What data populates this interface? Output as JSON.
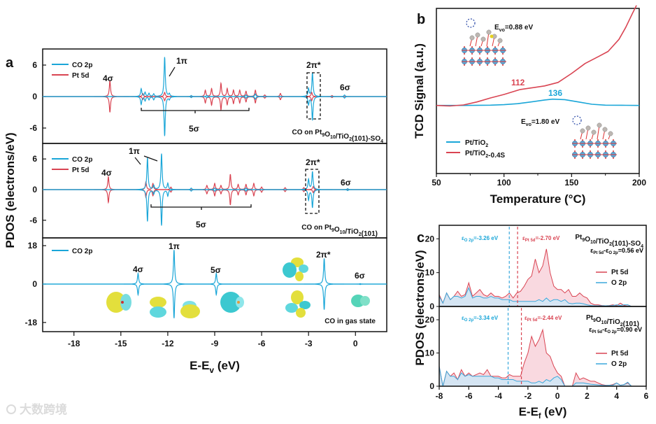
{
  "colors": {
    "co2p": "#1aa6d8",
    "pt5d": "#d94452",
    "o2p": "#3aa9dc",
    "pt_fill": "#f8d2da",
    "o_fill": "#cfe6f6"
  },
  "panel_labels": {
    "a": "a",
    "b": "b",
    "c": "c"
  },
  "watermark": "大数跨境",
  "chart_data": [
    {
      "id": "a",
      "type": "line",
      "title": "",
      "xlabel": {
        "pre": "E-E",
        "sub": "v",
        "post": " (eV)"
      },
      "ylabel": "PDOS (electrons/eV)",
      "xlim": [
        -20,
        2
      ],
      "xticks": [
        -18,
        -15,
        -12,
        -9,
        -6,
        -3,
        0
      ],
      "subplots": [
        {
          "ylim": [
            -9,
            9
          ],
          "yticks": [
            -6,
            0,
            6
          ],
          "caption": "CO on Pt9O10/TiO2(101)-SO4",
          "legend": [
            "CO 2p",
            "Pt 5d"
          ],
          "labels": {
            "s4": "4σ",
            "pi1": "1π",
            "s5": "5σ",
            "pi2": "2π*",
            "s6": "6σ"
          },
          "series": [
            {
              "name": "CO 2p",
              "peaks": [
                [
                  -13.7,
                  1.5,
                  -1.5
                ],
                [
                  -13.45,
                  0.8,
                  -0.8
                ],
                [
                  -13.2,
                  0.6,
                  -0.6
                ],
                [
                  -12.9,
                  0.5,
                  -0.6
                ],
                [
                  -12.2,
                  7.5,
                  -7.5
                ],
                [
                  -11.9,
                  0.5,
                  -0.5
                ],
                [
                  -10.5,
                  0.2,
                  -0.2
                ],
                [
                  -9.5,
                  0.2,
                  -0.2
                ],
                [
                  -7.0,
                  0.3,
                  -0.3
                ],
                [
                  -6.4,
                  0.5,
                  -0.5
                ],
                [
                  -3.0,
                  1.5,
                  -1.5
                ],
                [
                  -2.75,
                  4.5,
                  -4.5
                ],
                [
                  -0.7,
                  0.3,
                  -0.3
                ]
              ]
            },
            {
              "name": "Pt 5d",
              "peaks": [
                [
                  -15.7,
                  3,
                  -3
                ],
                [
                  -13.6,
                  0.6,
                  -0.6
                ],
                [
                  -12.2,
                  0.8,
                  -0.8
                ],
                [
                  -9.6,
                  1.2,
                  -1.2
                ],
                [
                  -9.2,
                  1.5,
                  -1.6
                ],
                [
                  -8.6,
                  2.5,
                  -2.5
                ],
                [
                  -8.2,
                  1.5,
                  -1.5
                ],
                [
                  -7.8,
                  1.2,
                  -1.3
                ],
                [
                  -7.4,
                  1.2,
                  -1.2
                ],
                [
                  -7.0,
                  1.0,
                  -1.0
                ],
                [
                  -6.4,
                  1.2,
                  -1.2
                ],
                [
                  -5.8,
                  0.3,
                  -0.3
                ],
                [
                  -4.8,
                  0.6,
                  -0.6
                ],
                [
                  -2.8,
                  0.8,
                  -0.8
                ],
                [
                  -1.5,
                  0.2,
                  -0.2
                ]
              ]
            }
          ]
        },
        {
          "ylim": [
            -9,
            9
          ],
          "yticks": [
            -6,
            0,
            6
          ],
          "caption": "CO on Pt9O10/TiO2(101)",
          "legend": [
            "CO 2p",
            "Pt 5d"
          ],
          "labels": {
            "s4": "4σ",
            "pi1": "1π",
            "s5": "5σ",
            "pi2": "2π*",
            "s6": "6σ"
          },
          "series": [
            {
              "name": "CO 2p",
              "peaks": [
                [
                  -13.3,
                  6.2,
                  -6.2
                ],
                [
                  -12.9,
                  0.8,
                  -0.8
                ],
                [
                  -12.4,
                  7,
                  -7
                ],
                [
                  -12.0,
                  1.2,
                  -1.2
                ],
                [
                  -10.5,
                  0.3,
                  -0.3
                ],
                [
                  -9.0,
                  0.3,
                  -0.3
                ],
                [
                  -7.0,
                  0.3,
                  -0.3
                ],
                [
                  -3.0,
                  2,
                  -2
                ],
                [
                  -2.75,
                  3.5,
                  -3.5
                ],
                [
                  -0.5,
                  0.2,
                  -0.2
                ]
              ]
            },
            {
              "name": "Pt 5d",
              "peaks": [
                [
                  -15.8,
                  2.5,
                  -2.5
                ],
                [
                  -13.4,
                  1.5,
                  -1.5
                ],
                [
                  -12.95,
                  1.2,
                  -1.2
                ],
                [
                  -11.8,
                  0.5,
                  -0.5
                ],
                [
                  -9.5,
                  0.8,
                  -0.8
                ],
                [
                  -9.0,
                  1.2,
                  -1.2
                ],
                [
                  -8.6,
                  0.8,
                  -0.8
                ],
                [
                  -8.0,
                  3,
                  -3
                ],
                [
                  -7.5,
                  1,
                  -1
                ],
                [
                  -7.0,
                  1,
                  -1
                ],
                [
                  -6.5,
                  1.2,
                  -1.2
                ],
                [
                  -6.0,
                  0.5,
                  -0.5
                ],
                [
                  -4.5,
                  0.4,
                  -0.4
                ],
                [
                  -3.3,
                  0.4,
                  -0.4
                ],
                [
                  -2.7,
                  0.6,
                  -0.6
                ]
              ]
            }
          ]
        },
        {
          "ylim": [
            -22,
            22
          ],
          "yticks": [
            -18,
            0,
            18
          ],
          "caption": "CO in gas state",
          "legend": [
            "CO 2p"
          ],
          "labels": {
            "s4": "4σ",
            "pi1": "1π",
            "s5": "5σ",
            "pi2": "2π*",
            "s6": "6σ"
          },
          "series": [
            {
              "name": "CO 2p",
              "peaks": [
                [
                  -13.9,
                  5,
                  -5
                ],
                [
                  -11.6,
                  16,
                  -16
                ],
                [
                  -8.9,
                  5,
                  -5
                ],
                [
                  -2.0,
                  12,
                  -12
                ],
                [
                  0.3,
                  0.2,
                  -0.2
                ]
              ]
            }
          ]
        }
      ]
    },
    {
      "id": "b",
      "type": "line",
      "xlabel": "Temperature (°C)",
      "ylabel": "TCD Signal (a.u.)",
      "xlim": [
        50,
        200
      ],
      "xticks": [
        50,
        100,
        150,
        200
      ],
      "ylim": [
        -68,
        97
      ],
      "series": [
        {
          "name": "Pt/TiO2",
          "x": [
            50,
            70,
            90,
            100,
            110,
            120,
            130,
            136,
            145,
            155,
            165,
            175,
            190,
            200
          ],
          "y": [
            0,
            0,
            0.3,
            0.8,
            1.8,
            3.5,
            5.5,
            6.3,
            5.8,
            3.5,
            1.2,
            0.3,
            0.2,
            0
          ]
        },
        {
          "name": "Pt/TiO2-0.4S",
          "x": [
            50,
            60,
            70,
            80,
            90,
            100,
            112,
            120,
            130,
            140,
            150,
            160,
            170,
            177,
            185,
            190,
            195,
            198
          ],
          "y": [
            0,
            -0.5,
            0.5,
            3.5,
            7.5,
            11,
            16,
            17.5,
            19.5,
            23,
            32,
            42,
            49,
            54,
            66,
            78,
            92,
            100
          ]
        }
      ],
      "annotations": {
        "peak_red": "112",
        "peak_blue": "136",
        "evo_s": {
          "pre": "E",
          "sub": "vo",
          "post": "=0.88 eV"
        },
        "evo_0": {
          "pre": "E",
          "sub": "vo",
          "post": "=1.80 eV"
        }
      }
    },
    {
      "id": "c",
      "type": "area",
      "xlabel": {
        "pre": "E-E",
        "sub": "f",
        "post": " (eV)"
      },
      "ylabel": "PDOS (electrons/eV)",
      "xlim": [
        -8,
        6
      ],
      "xticks": [
        -8,
        -6,
        -4,
        -2,
        0,
        2,
        4,
        6
      ],
      "x_start": -8,
      "x_step": 0.25,
      "subplots": [
        {
          "ylim": [
            0,
            24
          ],
          "yticks": [
            0,
            10,
            20
          ],
          "title": "Pt9O10/TiO2(101)-SO4",
          "legend": [
            "Pt 5d",
            "O 2p"
          ],
          "eps_o2p": -3.26,
          "eps_pt5d": -2.7,
          "eps_o_label": {
            "sym": "ε",
            "sub": "O 2p",
            "val": "=-3.26 eV"
          },
          "eps_pt_label": {
            "sym": "ε",
            "sub": "Pt 5d",
            "val": "=-2.70 eV"
          },
          "delta_label": {
            "sym": "ε",
            "sub1": "Pt 5d",
            "mid": "-ε",
            "sub2": "O 2p",
            "val": "=0.56 eV"
          },
          "series": [
            {
              "name": "Pt 5d",
              "values": [
                3.5,
                1,
                4,
                2,
                3,
                4.5,
                3,
                3.5,
                7,
                3,
                4,
                5,
                3.5,
                3,
                4,
                3,
                3,
                2.5,
                3,
                4,
                2.5,
                4,
                4.5,
                6,
                8,
                9,
                14,
                10,
                12,
                17,
                10,
                6,
                5,
                5,
                4,
                5,
                3,
                3,
                4,
                3,
                2.5,
                1,
                0.5,
                0.5,
                0.3,
                0.2,
                0.3,
                0.5,
                0.2,
                1,
                0.3,
                0.5,
                0
              ]
            },
            {
              "name": "O 2p",
              "values": [
                3,
                1,
                4,
                2,
                3,
                3,
                2.5,
                3,
                5.5,
                2.5,
                3,
                3,
                2.5,
                2.5,
                3,
                2.5,
                2.5,
                2,
                2,
                2,
                1.5,
                1.5,
                1.5,
                1.5,
                1.5,
                1.5,
                1.5,
                2,
                1.5,
                2.5,
                1.5,
                2,
                2,
                1.5,
                2,
                1,
                0.8,
                1,
                1,
                0.8,
                0.5,
                0.3,
                0.2,
                0.2,
                0.2,
                0.2,
                0.2,
                0.3,
                0.5,
                0.3,
                0.5,
                0.5,
                0
              ]
            }
          ]
        },
        {
          "ylim": [
            0,
            24
          ],
          "yticks": [
            0,
            10,
            20
          ],
          "title": "Pt9O10/TiO2(101)",
          "legend": [
            "Pt 5d",
            "O 2p"
          ],
          "eps_o2p": -3.34,
          "eps_pt5d": -2.44,
          "eps_o_label": {
            "sym": "ε",
            "sub": "O 2p",
            "val": "=-3.34 eV"
          },
          "eps_pt_label": {
            "sym": "ε",
            "sub": "Pt 5d",
            "val": "=-2.44 eV"
          },
          "delta_label": {
            "sym": "ε",
            "sub1": "Pt 5d",
            "mid": "-ε",
            "sub2": "O 2p",
            "val": "=0.90 eV"
          },
          "series": [
            {
              "name": "Pt 5d",
              "values": [
                6,
                0,
                4.5,
                3,
                4,
                2,
                5,
                3,
                4,
                3,
                3.5,
                4,
                3.5,
                5,
                3,
                3,
                3,
                2.5,
                2.5,
                3.5,
                3,
                3,
                3,
                7,
                10,
                15,
                12,
                14,
                17,
                10,
                9,
                6,
                4,
                3,
                0,
                0,
                0,
                4,
                2,
                2.5,
                2,
                1.5,
                1.5,
                1,
                0.5,
                0.3,
                0.3,
                0.5,
                1,
                0.3,
                0.5,
                1,
                0
              ]
            },
            {
              "name": "O 2p",
              "values": [
                6,
                0,
                4.5,
                3,
                3,
                2,
                4,
                3,
                3.5,
                3,
                3,
                3,
                3,
                3,
                3,
                2.5,
                2.5,
                2,
                2,
                2,
                2,
                1.5,
                1.5,
                1.5,
                1.5,
                1,
                1,
                1.5,
                1,
                2,
                1.5,
                2.5,
                3,
                2,
                0,
                0,
                0,
                1,
                1,
                1,
                0.8,
                0.6,
                0.5,
                0.4,
                0.3,
                0.2,
                0.3,
                0.3,
                1,
                0.3,
                0.5,
                1.2,
                0
              ]
            }
          ]
        }
      ]
    }
  ]
}
